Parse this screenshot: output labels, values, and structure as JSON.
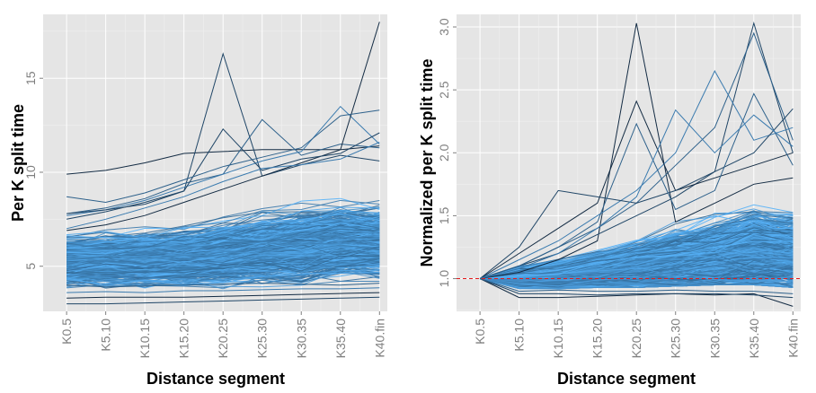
{
  "chart_data": [
    {
      "type": "line",
      "title": "",
      "xlabel": "Distance segment",
      "ylabel": "Per K split time",
      "categories": [
        "K0.5",
        "K5.10",
        "K10.15",
        "K15.20",
        "K20.25",
        "K25.30",
        "K30.35",
        "K35.40",
        "K40.fin"
      ],
      "yticks": [
        5,
        10,
        15
      ],
      "ylim": [
        2.6,
        18.4
      ],
      "grid": true,
      "legend": "none",
      "colors": {
        "panel": "#e5e5e5",
        "grid_major": "#ffffff",
        "low": "#132b43",
        "high": "#56b1f7"
      },
      "series_summary": {
        "lines_approx": 1500,
        "median": [
          5.3,
          5.35,
          5.4,
          5.5,
          5.7,
          5.9,
          6.1,
          6.3,
          6.3
        ],
        "band_low": [
          3.5,
          3.6,
          3.6,
          3.7,
          3.8,
          3.9,
          4.0,
          4.2,
          4.2
        ],
        "band_high": [
          7.0,
          7.3,
          7.5,
          7.9,
          8.4,
          8.8,
          9.3,
          9.6,
          9.4
        ]
      },
      "series": [
        {
          "values": [
            9.9,
            10.1,
            10.5,
            11.0,
            11.1,
            11.2,
            11.2,
            11.2,
            11.4
          ]
        },
        {
          "values": [
            7.5,
            7.9,
            8.4,
            9.0,
            16.3,
            9.8,
            10.4,
            10.9,
            10.6
          ]
        },
        {
          "values": [
            7.8,
            8.1,
            8.6,
            9.4,
            9.9,
            12.8,
            10.9,
            11.5,
            11.3
          ]
        },
        {
          "values": [
            7.7,
            8.0,
            8.5,
            9.2,
            9.9,
            10.6,
            11.1,
            13.5,
            11.5
          ]
        },
        {
          "values": [
            6.9,
            7.2,
            7.7,
            8.4,
            9.1,
            9.8,
            10.5,
            11.2,
            18.0
          ]
        },
        {
          "values": [
            7.8,
            8.0,
            8.3,
            9.0,
            12.3,
            10.1,
            10.7,
            11.0,
            12.1
          ]
        },
        {
          "values": [
            8.7,
            8.4,
            8.9,
            9.6,
            10.3,
            10.8,
            11.3,
            13.0,
            13.3
          ]
        },
        {
          "values": [
            7.0,
            7.5,
            8.1,
            8.7,
            9.5,
            10.2,
            10.4,
            10.7,
            11.6
          ]
        },
        {
          "values": [
            3.3,
            3.35,
            3.35,
            3.35,
            3.4,
            3.45,
            3.5,
            3.55,
            3.6
          ]
        },
        {
          "values": [
            3.0,
            3.0,
            3.05,
            3.1,
            3.15,
            3.2,
            3.25,
            3.3,
            3.35
          ]
        },
        {
          "values": [
            4.0,
            3.9,
            3.95,
            4.0,
            4.05,
            4.1,
            4.05,
            4.0,
            4.1
          ]
        },
        {
          "values": [
            3.6,
            3.65,
            3.6,
            3.7,
            3.7,
            3.75,
            3.8,
            3.8,
            3.85
          ]
        }
      ]
    },
    {
      "type": "line",
      "title": "",
      "xlabel": "Distance segment",
      "ylabel": "Normalized per K split time",
      "categories": [
        "K0.5",
        "K5.10",
        "K10.15",
        "K15.20",
        "K20.25",
        "K25.30",
        "K30.35",
        "K35.40",
        "K40.fin"
      ],
      "yticks": [
        1.0,
        1.5,
        2.0,
        2.5,
        3.0
      ],
      "ylim": [
        0.74,
        3.1
      ],
      "grid": true,
      "legend": "none",
      "reference_line": {
        "y": 1.0,
        "style": "dashed",
        "color": "#e41a1c"
      },
      "colors": {
        "panel": "#e5e5e5",
        "grid_major": "#ffffff",
        "low": "#132b43",
        "high": "#56b1f7"
      },
      "series_summary": {
        "lines_approx": 1500,
        "median": [
          1.0,
          1.01,
          1.03,
          1.06,
          1.1,
          1.14,
          1.18,
          1.22,
          1.21
        ],
        "band_low": [
          1.0,
          0.92,
          0.92,
          0.93,
          0.93,
          0.94,
          0.95,
          0.95,
          0.93
        ],
        "band_high": [
          1.0,
          1.18,
          1.27,
          1.38,
          1.5,
          1.65,
          1.78,
          1.9,
          1.85
        ]
      },
      "series": [
        {
          "values": [
            1.0,
            1.05,
            1.15,
            1.3,
            3.03,
            1.45,
            1.6,
            1.75,
            1.8
          ]
        },
        {
          "values": [
            1.0,
            1.1,
            1.2,
            1.35,
            1.5,
            1.65,
            1.85,
            3.03,
            2.0
          ]
        },
        {
          "values": [
            1.0,
            1.1,
            1.25,
            1.4,
            1.6,
            1.9,
            2.2,
            2.95,
            2.1
          ]
        },
        {
          "values": [
            1.0,
            1.15,
            1.3,
            1.5,
            1.7,
            2.0,
            2.65,
            2.1,
            2.2
          ]
        },
        {
          "values": [
            1.0,
            1.2,
            1.4,
            1.6,
            2.41,
            1.7,
            1.8,
            1.9,
            2.0
          ]
        },
        {
          "values": [
            1.0,
            1.25,
            1.7,
            1.65,
            1.6,
            1.7,
            1.85,
            2.0,
            2.35
          ]
        },
        {
          "values": [
            1.0,
            1.1,
            1.25,
            1.45,
            2.23,
            1.55,
            1.7,
            2.47,
            1.9
          ]
        },
        {
          "values": [
            1.0,
            1.08,
            1.2,
            1.4,
            1.65,
            2.34,
            2.0,
            2.3,
            2.05
          ]
        },
        {
          "values": [
            1.0,
            0.85,
            0.85,
            0.86,
            0.87,
            0.88,
            0.87,
            0.88,
            0.78
          ]
        },
        {
          "values": [
            1.0,
            0.88,
            0.88,
            0.87,
            0.88,
            0.88,
            0.88,
            0.87,
            0.85
          ]
        },
        {
          "values": [
            1.0,
            0.9,
            0.91,
            0.9,
            0.9,
            0.91,
            0.9,
            0.9,
            0.88
          ]
        }
      ]
    }
  ]
}
